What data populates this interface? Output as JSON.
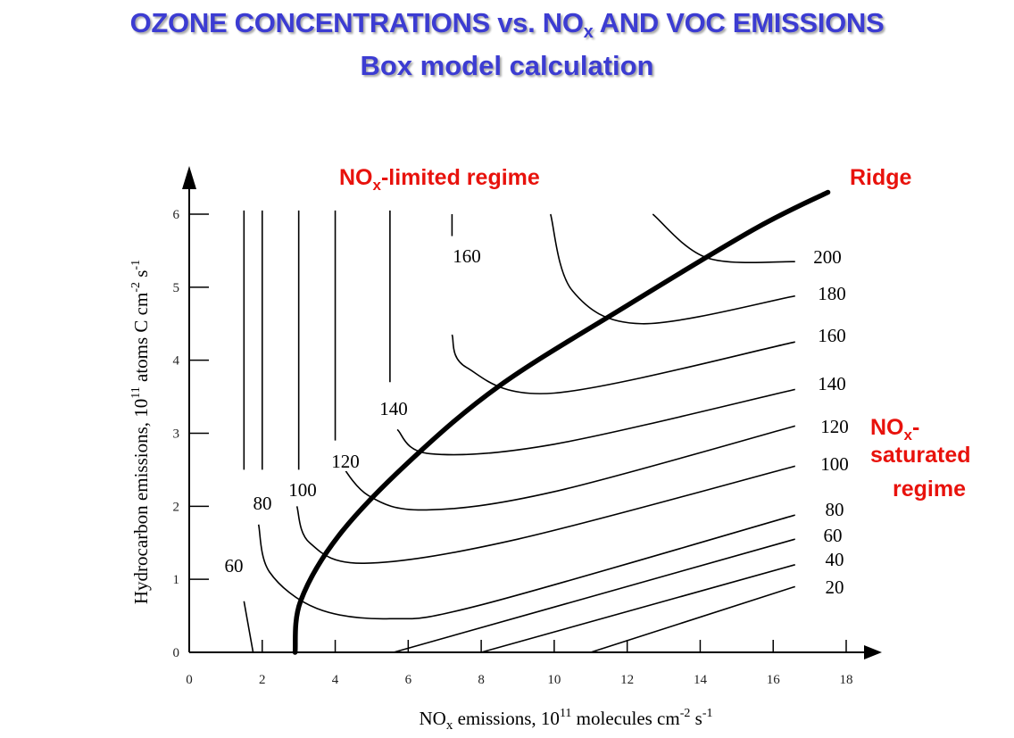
{
  "title": {
    "line1_pre": "OZONE CONCENTRATIONS vs. NO",
    "line1_sub": "x",
    "line1_post": " AND VOC EMISSIONS",
    "line2": "Box model calculation"
  },
  "colors": {
    "title": "#3c3cd2",
    "annotation": "#e8120c",
    "ink": "#000000"
  },
  "chart_data": {
    "type": "contour",
    "xlabel_pre": "NO",
    "xlabel_sub": "x",
    "xlabel_mid": " emissions, 10",
    "xlabel_sup1": "11",
    "xlabel_post1": " molecules cm",
    "xlabel_sup2": "-2",
    "xlabel_post2": " s",
    "xlabel_sup3": "-1",
    "ylabel_pre": "Hydrocarbon emissions, 10",
    "ylabel_sup1": "11",
    "ylabel_mid": " atoms C cm",
    "ylabel_sup2": "-2",
    "ylabel_post": " s",
    "ylabel_sup3": "-1",
    "xlim": [
      0,
      18
    ],
    "ylim": [
      0,
      6
    ],
    "xticks": [
      "0",
      "2",
      "4",
      "6",
      "8",
      "10",
      "12",
      "14",
      "16",
      "18"
    ],
    "yticks": [
      "0",
      "1",
      "2",
      "3",
      "4",
      "5",
      "6"
    ],
    "contours": [
      {
        "level": "20",
        "label": "20",
        "points": [
          [
            11,
            0
          ],
          [
            16.6,
            0.9
          ]
        ]
      },
      {
        "level": "40",
        "label": "40",
        "points": [
          [
            8,
            0
          ],
          [
            16.6,
            1.2
          ]
        ]
      },
      {
        "level": "60",
        "label": "60",
        "points": [
          [
            5.6,
            0
          ],
          [
            16.6,
            1.55
          ]
        ]
      },
      {
        "level": "80",
        "label": "80",
        "points": [
          [
            1.9,
            1.75
          ],
          [
            2.2,
            1.1
          ],
          [
            3.5,
            0.6
          ],
          [
            5.5,
            0.46
          ],
          [
            8,
            0.65
          ],
          [
            16.6,
            1.88
          ]
        ]
      },
      {
        "level": "100",
        "label": "100",
        "points": [
          [
            2.95,
            2.0
          ],
          [
            3.3,
            1.5
          ],
          [
            4.8,
            1.22
          ],
          [
            9,
            1.55
          ],
          [
            16.6,
            2.55
          ]
        ]
      },
      {
        "level": "120",
        "label": "120",
        "points": [
          [
            4.0,
            2.7
          ],
          [
            4.9,
            2.15
          ],
          [
            6.5,
            1.95
          ],
          [
            10,
            2.2
          ],
          [
            16.6,
            3.1
          ]
        ]
      },
      {
        "level": "140",
        "label": "140",
        "points": [
          [
            5.7,
            3.05
          ],
          [
            6.6,
            2.72
          ],
          [
            10,
            2.85
          ],
          [
            16.6,
            3.6
          ]
        ]
      },
      {
        "level": "160",
        "label": "160",
        "points": [
          [
            7.2,
            4.35
          ],
          [
            7.6,
            3.9
          ],
          [
            10,
            3.55
          ],
          [
            16.6,
            4.25
          ]
        ]
      },
      {
        "level": "180",
        "label": "180",
        "points": [
          [
            9.9,
            6.0
          ],
          [
            10.5,
            4.95
          ],
          [
            12.4,
            4.5
          ],
          [
            16.6,
            4.88
          ]
        ]
      },
      {
        "level": "200",
        "label": "200",
        "points": [
          [
            12.7,
            6.0
          ],
          [
            14.2,
            5.4
          ],
          [
            16.6,
            5.35
          ]
        ]
      },
      {
        "level": "60",
        "label": "60",
        "points": [
          [
            1.5,
            0.7
          ],
          [
            1.75,
            0
          ]
        ]
      },
      {
        "level": "80",
        "label": "",
        "points": [
          [
            1.5,
            6.05
          ],
          [
            1.5,
            2.5
          ]
        ]
      },
      {
        "level": "100",
        "label": "",
        "points": [
          [
            2.0,
            6.05
          ],
          [
            2.0,
            2.5
          ]
        ]
      },
      {
        "level": "120",
        "label": "",
        "points": [
          [
            3.0,
            6.05
          ],
          [
            3.0,
            2.5
          ]
        ]
      },
      {
        "level": "140",
        "label": "",
        "points": [
          [
            4.0,
            6.05
          ],
          [
            4.0,
            2.9
          ]
        ]
      },
      {
        "level": "160",
        "label": "",
        "points": [
          [
            5.5,
            6.05
          ],
          [
            5.5,
            3.7
          ]
        ]
      },
      {
        "level": "160",
        "label": "",
        "points": [
          [
            7.2,
            6.0
          ],
          [
            7.2,
            5.7
          ]
        ]
      }
    ],
    "ridge": {
      "label": "Ridge",
      "points": [
        [
          2.9,
          0
        ],
        [
          3.05,
          0.7
        ],
        [
          4.1,
          1.6
        ],
        [
          6,
          2.6
        ],
        [
          8.5,
          3.65
        ],
        [
          12,
          4.75
        ],
        [
          15.5,
          5.8
        ],
        [
          17.5,
          6.3
        ]
      ]
    },
    "annotations": {
      "nox_limited_pre": "NO",
      "nox_limited_sub": "x",
      "nox_limited_post": "-limited regime",
      "ridge": "Ridge",
      "nox_saturated_line1_pre": "NO",
      "nox_saturated_line1_sub": "x",
      "nox_saturated_line1_post": "-",
      "nox_saturated_line2": "saturated",
      "nox_saturated_line3": "regime"
    }
  }
}
